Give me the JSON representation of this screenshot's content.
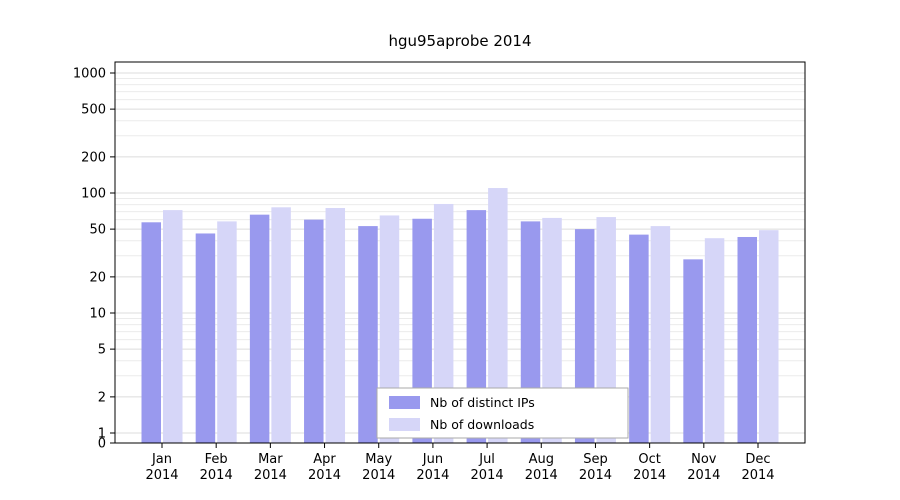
{
  "chart_data": {
    "type": "bar",
    "title": "hgu95aprobe 2014",
    "yscale": "symlog",
    "ylim": [
      0,
      1230
    ],
    "yticks": [
      0,
      1,
      2,
      5,
      10,
      20,
      50,
      100,
      200,
      500,
      1000
    ],
    "categories": [
      "Jan",
      "Feb",
      "Mar",
      "Apr",
      "May",
      "Jun",
      "Jul",
      "Aug",
      "Sep",
      "Oct",
      "Nov",
      "Dec"
    ],
    "year_label": "2014",
    "series": [
      {
        "name": "Nb of distinct IPs",
        "color": "#9999ee",
        "values": [
          57,
          46,
          66,
          60,
          53,
          61,
          72,
          58,
          50,
          45,
          28,
          43
        ]
      },
      {
        "name": "Nb of downloads",
        "color": "#d6d6f8",
        "values": [
          72,
          58,
          76,
          75,
          65,
          81,
          110,
          62,
          63,
          53,
          42,
          49
        ]
      }
    ],
    "legend_position": "lower center",
    "grid": true
  },
  "colors": {
    "background": "#ffffff",
    "axis": "#000000",
    "grid_major": "#dcdcdc",
    "grid_minor": "#ebebeb",
    "legend_border": "#aaaaaa",
    "legend_fill": "#ffffff",
    "tick": "#000000"
  }
}
